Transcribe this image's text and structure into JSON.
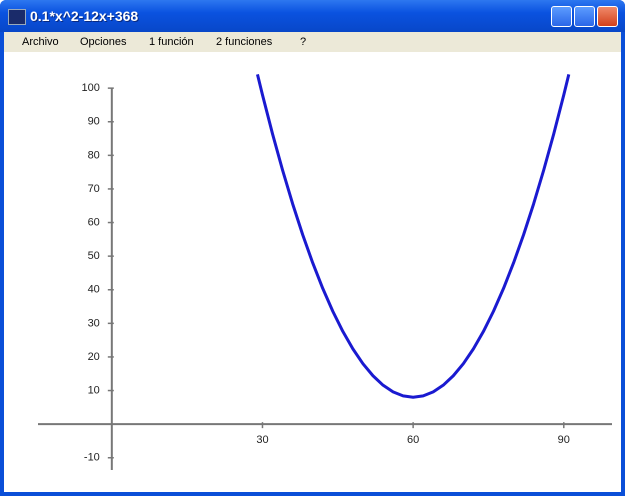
{
  "window": {
    "title": "0.1*x^2-12x+368"
  },
  "menu": [
    "Archivo",
    "Opciones",
    "1 función",
    "2 funciones",
    "?"
  ],
  "chart_data": {
    "type": "line",
    "color": "#1a1ad0",
    "x": [
      29,
      30,
      32,
      34,
      36,
      38,
      40,
      42,
      44,
      46,
      48,
      50,
      52,
      54,
      56,
      58,
      60,
      62,
      64,
      66,
      68,
      70,
      72,
      74,
      76,
      78,
      80,
      82,
      84,
      86,
      88,
      90,
      91
    ],
    "values": [
      104.1,
      98,
      86.4,
      75.6,
      65.6,
      56.4,
      48,
      40.4,
      33.6,
      27.6,
      22.4,
      18,
      14.4,
      11.6,
      9.6,
      8.4,
      8,
      8.4,
      9.6,
      11.6,
      14.4,
      18,
      22.4,
      27.6,
      33.6,
      40.4,
      48,
      56.4,
      65.6,
      75.6,
      86.4,
      98,
      104.1
    ],
    "xlim": [
      -14.7,
      99.6
    ],
    "ylim": [
      -19.6,
      105.4
    ],
    "xticks": [
      30,
      60,
      90
    ],
    "yticks": [
      -10,
      10,
      20,
      30,
      40,
      50,
      60,
      70,
      80,
      90,
      100
    ]
  }
}
